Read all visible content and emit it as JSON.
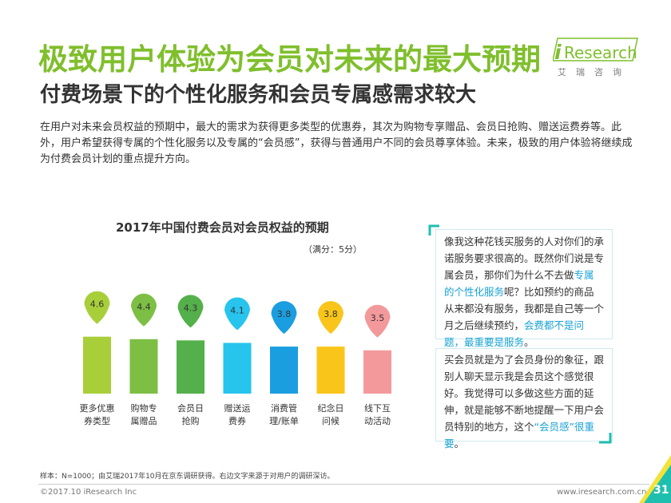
{
  "header": {
    "title": "极致用户体验为会员对未来的最大预期",
    "subtitle": "付费场景下的个性化服务和会员专属感需求较大"
  },
  "logo": {
    "mark": "i",
    "text": "Research",
    "sub": "艾瑞咨询"
  },
  "intro": "在用户对未来会员权益的预期中，最大的需求为获得更多类型的优惠券，其次为购物专享赠品、会员日抢购、赠送运费券等。此外，用户希望获得专属的个性化服务以及专属的“会员感”，获得与普通用户不同的会员尊享体验。未来，极致的用户体验将继续成为付费会员计划的重点提升方向。",
  "chart_data": {
    "type": "bar",
    "title": "2017年中国付费会员对会员权益的预期",
    "unit_note": "（满分：5分）",
    "categories": [
      [
        "更多优惠",
        "券类型"
      ],
      [
        "购物专",
        "属赠品"
      ],
      [
        "会员日",
        "抢购"
      ],
      [
        "赠送运",
        "费券"
      ],
      [
        "消费管",
        "理/账单"
      ],
      [
        "纪念日",
        "问候"
      ],
      [
        "线下互",
        "动活动"
      ]
    ],
    "values": [
      4.6,
      4.4,
      4.3,
      4.1,
      3.8,
      3.8,
      3.5
    ],
    "value_labels": [
      "4.6",
      "4.4",
      "4.3",
      "4.1",
      "3.8",
      "3.8",
      "3.5"
    ],
    "colors": [
      "#a8cf3a",
      "#7cbf44",
      "#54b04a",
      "#27c4ee",
      "#1a9ee0",
      "#f9c51a",
      "#f3999b"
    ],
    "ylim": [
      0,
      5
    ]
  },
  "quotes": [
    {
      "segments": [
        {
          "text": "像我这种花钱买服务的人对你们的承诺服务要求很高的。既然你们说是专属会员，那你们为什么不去做",
          "hl": false
        },
        {
          "text": "专属的个性化服务",
          "hl": true
        },
        {
          "text": "呢？比如预约的商品从来都没有服务，我都是自己等一个月之后继续预约，",
          "hl": false
        },
        {
          "text": "会费都不是问题，最重要是服务",
          "hl": true
        },
        {
          "text": "。",
          "hl": false
        }
      ]
    },
    {
      "segments": [
        {
          "text": "买会员就是为了会员身份的象征，跟别人聊天显示我是会员这个感觉很好。我觉得可以多做这些方面的延伸，就是能够不断地提醒一下用户会员特别的地方，这个",
          "hl": false
        },
        {
          "text": "“会员感”很重要",
          "hl": true
        },
        {
          "text": "。",
          "hl": false
        }
      ]
    }
  ],
  "footer": {
    "footnote": "样本：N=1000；由艾瑞2017年10月在京东调研获得。右边文字来源于对用户的调研深访。",
    "copyright": "©2017.10 iResearch Inc",
    "website": "www.iresearch.com.cn",
    "page": "31"
  },
  "colors": {
    "brand_green": "#7fbf2c",
    "highlight_blue": "#1aa3d4",
    "corner_teal": "#1fbfb0",
    "corner_yellow": "#f2e23a"
  }
}
